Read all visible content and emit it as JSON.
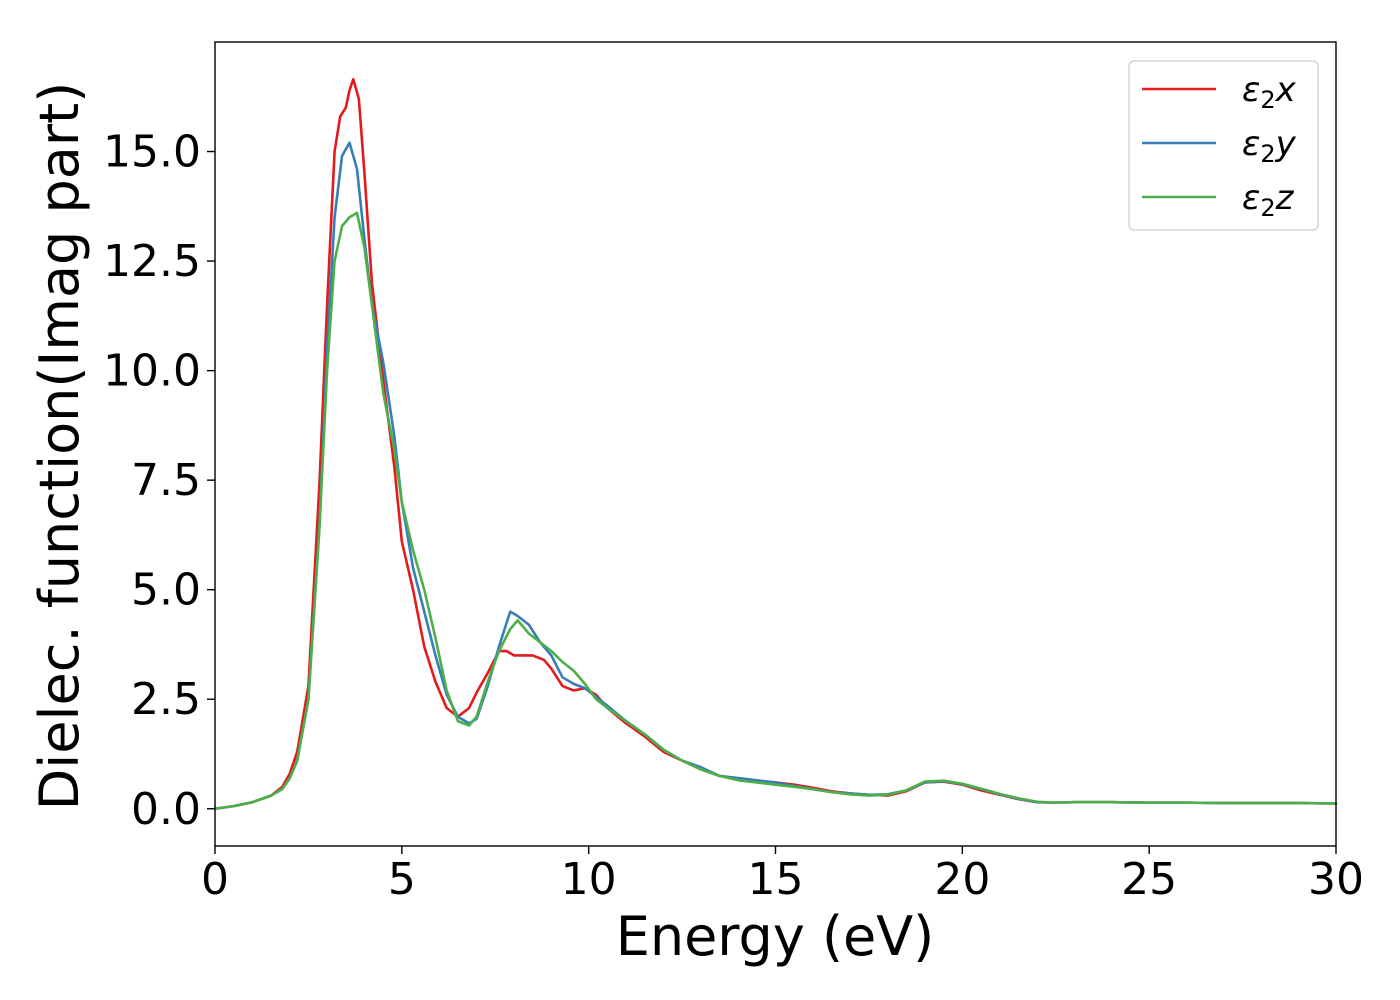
{
  "chart_data": {
    "type": "line",
    "title": "",
    "xlabel": "Energy (eV)",
    "ylabel": "Dielec. function(Imag part)",
    "xlim": [
      0,
      30
    ],
    "ylim": [
      -0.85,
      17.5
    ],
    "xticks": [
      0,
      5,
      10,
      15,
      20,
      25,
      30
    ],
    "yticks": [
      0.0,
      2.5,
      5.0,
      7.5,
      10.0,
      12.5,
      15.0
    ],
    "xtick_labels": [
      "0",
      "5",
      "10",
      "15",
      "20",
      "25",
      "30"
    ],
    "ytick_labels": [
      "0.0",
      "2.5",
      "5.0",
      "7.5",
      "10.0",
      "12.5",
      "15.0"
    ],
    "grid": false,
    "legend_position": "top-right",
    "series": [
      {
        "name": "ε₂x",
        "legend_base": "ε",
        "legend_sub": "2",
        "legend_suffix": "x",
        "color": "#e41a1c",
        "x": [
          0,
          0.5,
          1.0,
          1.5,
          1.8,
          2.0,
          2.2,
          2.5,
          2.8,
          3.0,
          3.2,
          3.35,
          3.5,
          3.6,
          3.7,
          3.85,
          4.0,
          4.2,
          4.5,
          4.8,
          5.0,
          5.3,
          5.6,
          5.9,
          6.2,
          6.5,
          6.8,
          7.0,
          7.3,
          7.6,
          7.8,
          8.0,
          8.2,
          8.5,
          8.8,
          9.0,
          9.3,
          9.6,
          9.9,
          10.2,
          10.5,
          11.0,
          11.5,
          12.0,
          12.5,
          13.0,
          13.5,
          14.0,
          14.5,
          15.0,
          15.5,
          16.0,
          16.5,
          17.0,
          17.5,
          18.0,
          18.5,
          19.0,
          19.5,
          20.0,
          20.5,
          21.0,
          21.5,
          22.0,
          22.5,
          23.0,
          24.0,
          25.0,
          26.0,
          27.0,
          28.0,
          29.0,
          30.0
        ],
        "y": [
          0.0,
          0.06,
          0.15,
          0.3,
          0.5,
          0.8,
          1.3,
          2.8,
          7.5,
          11.5,
          15.0,
          15.8,
          16.0,
          16.4,
          16.65,
          16.2,
          14.5,
          12.0,
          9.8,
          7.8,
          6.1,
          5.0,
          3.7,
          2.9,
          2.3,
          2.1,
          2.3,
          2.65,
          3.1,
          3.6,
          3.6,
          3.5,
          3.5,
          3.5,
          3.4,
          3.2,
          2.8,
          2.7,
          2.75,
          2.6,
          2.3,
          1.95,
          1.65,
          1.3,
          1.1,
          0.9,
          0.75,
          0.68,
          0.63,
          0.6,
          0.55,
          0.48,
          0.4,
          0.35,
          0.32,
          0.3,
          0.4,
          0.6,
          0.62,
          0.55,
          0.42,
          0.32,
          0.22,
          0.15,
          0.14,
          0.15,
          0.15,
          0.14,
          0.14,
          0.13,
          0.13,
          0.13,
          0.12
        ]
      },
      {
        "name": "ε₂y",
        "legend_base": "ε",
        "legend_sub": "2",
        "legend_suffix": "y",
        "color": "#377eb8",
        "x": [
          0,
          0.5,
          1.0,
          1.5,
          1.8,
          2.0,
          2.2,
          2.5,
          2.8,
          3.0,
          3.2,
          3.4,
          3.6,
          3.8,
          4.0,
          4.2,
          4.5,
          4.8,
          5.0,
          5.3,
          5.6,
          5.9,
          6.2,
          6.5,
          6.8,
          7.0,
          7.3,
          7.6,
          7.9,
          8.1,
          8.4,
          8.7,
          9.0,
          9.3,
          9.6,
          9.9,
          10.2,
          10.5,
          11.0,
          11.5,
          12.0,
          12.5,
          13.0,
          13.5,
          14.0,
          14.5,
          15.0,
          15.5,
          16.0,
          16.5,
          17.0,
          17.5,
          18.0,
          18.5,
          19.0,
          19.5,
          20.0,
          20.5,
          21.0,
          21.5,
          22.0,
          22.5,
          23.0,
          24.0,
          25.0,
          26.0,
          27.0,
          28.0,
          29.0,
          30.0
        ],
        "y": [
          0.0,
          0.06,
          0.15,
          0.3,
          0.45,
          0.7,
          1.1,
          2.5,
          6.5,
          10.5,
          13.5,
          14.9,
          15.2,
          14.6,
          13.0,
          11.5,
          10.2,
          8.5,
          7.0,
          5.5,
          4.5,
          3.5,
          2.6,
          2.1,
          1.95,
          2.05,
          2.8,
          3.7,
          4.5,
          4.4,
          4.2,
          3.8,
          3.5,
          3.0,
          2.85,
          2.75,
          2.55,
          2.35,
          2.0,
          1.7,
          1.35,
          1.1,
          0.95,
          0.75,
          0.7,
          0.65,
          0.6,
          0.52,
          0.45,
          0.38,
          0.35,
          0.32,
          0.33,
          0.42,
          0.6,
          0.63,
          0.56,
          0.45,
          0.33,
          0.23,
          0.15,
          0.14,
          0.15,
          0.15,
          0.14,
          0.14,
          0.13,
          0.13,
          0.13,
          0.12
        ]
      },
      {
        "name": "ε₂z",
        "legend_base": "ε",
        "legend_sub": "2",
        "legend_suffix": "z",
        "color": "#4daf4a",
        "x": [
          0,
          0.5,
          1.0,
          1.5,
          1.8,
          2.0,
          2.2,
          2.5,
          2.8,
          3.0,
          3.2,
          3.4,
          3.6,
          3.8,
          4.0,
          4.2,
          4.5,
          4.8,
          5.0,
          5.3,
          5.6,
          5.9,
          6.2,
          6.5,
          6.8,
          7.0,
          7.3,
          7.6,
          7.9,
          8.1,
          8.4,
          8.7,
          9.0,
          9.3,
          9.6,
          9.9,
          10.2,
          10.5,
          11.0,
          11.5,
          12.0,
          12.5,
          13.0,
          13.5,
          14.0,
          14.5,
          15.0,
          15.5,
          16.0,
          16.5,
          17.0,
          17.5,
          18.0,
          18.5,
          19.0,
          19.5,
          20.0,
          20.5,
          21.0,
          21.5,
          22.0,
          22.5,
          23.0,
          24.0,
          25.0,
          26.0,
          27.0,
          28.0,
          29.0,
          30.0
        ],
        "y": [
          0.0,
          0.06,
          0.15,
          0.3,
          0.45,
          0.7,
          1.1,
          2.5,
          6.5,
          10.0,
          12.5,
          13.3,
          13.5,
          13.6,
          12.8,
          11.5,
          9.5,
          8.2,
          7.0,
          5.9,
          5.0,
          3.9,
          2.7,
          2.0,
          1.9,
          2.1,
          2.9,
          3.6,
          4.1,
          4.3,
          4.0,
          3.8,
          3.6,
          3.35,
          3.15,
          2.85,
          2.5,
          2.3,
          2.0,
          1.7,
          1.35,
          1.1,
          0.9,
          0.75,
          0.65,
          0.6,
          0.55,
          0.5,
          0.45,
          0.38,
          0.33,
          0.3,
          0.32,
          0.42,
          0.62,
          0.64,
          0.57,
          0.46,
          0.34,
          0.24,
          0.16,
          0.14,
          0.15,
          0.15,
          0.14,
          0.14,
          0.13,
          0.13,
          0.13,
          0.12
        ]
      }
    ]
  }
}
